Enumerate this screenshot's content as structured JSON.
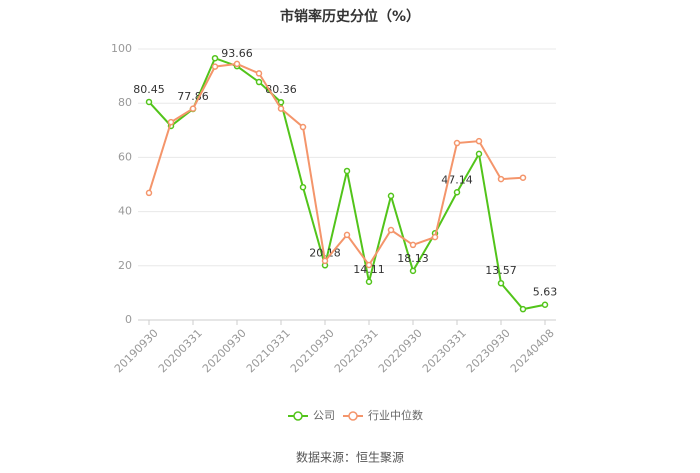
{
  "chart_data": {
    "type": "line",
    "title": "市销率历史分位（%）",
    "categories": [
      "20190930",
      null,
      "20200331",
      null,
      "20200930",
      null,
      "20210331",
      null,
      "20210930",
      null,
      "20220331",
      null,
      "20220930",
      null,
      "20230331",
      null,
      "20230930",
      null,
      "20240408"
    ],
    "series": [
      {
        "name": "公司",
        "color": "#52c41a",
        "values": [
          80.45,
          71.6,
          77.86,
          96.6,
          93.66,
          87.8,
          80.36,
          49,
          20.18,
          55,
          14.11,
          45.8,
          18.13,
          32,
          47.14,
          61.3,
          13.57,
          4,
          5.63
        ],
        "value_labels": [
          "80.45",
          null,
          "77.86",
          null,
          "93.66",
          null,
          "80.36",
          null,
          "20.18",
          null,
          "14.11",
          null,
          "18.13",
          null,
          "47.14",
          null,
          "13.57",
          null,
          "5.63"
        ]
      },
      {
        "name": "行业中位数",
        "color": "#f4956b",
        "values": [
          46.9,
          73,
          78,
          93.5,
          94.5,
          91,
          78,
          71.2,
          21.8,
          31.4,
          20.3,
          33.2,
          27.7,
          30.6,
          65.3,
          66,
          52,
          52.5,
          null
        ]
      }
    ],
    "ylim": [
      0,
      100
    ],
    "yticks": [
      0,
      20,
      40,
      60,
      80,
      100
    ],
    "grid": true,
    "legend": "bottom",
    "source": "数据来源：恒生聚源"
  }
}
